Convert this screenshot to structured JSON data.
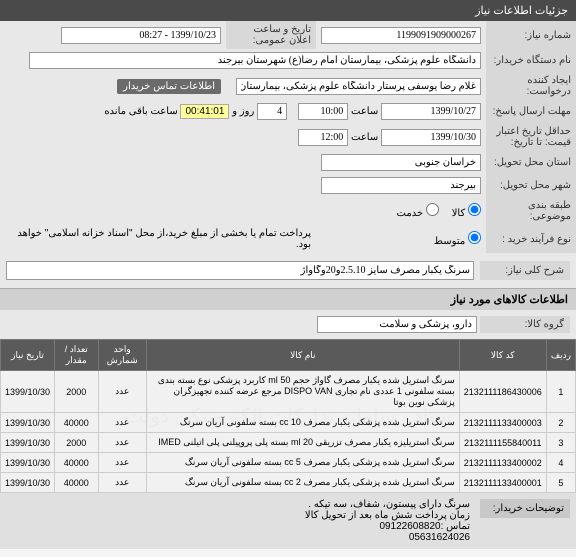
{
  "header": {
    "title": "جزئیات اطلاعات نیاز"
  },
  "form": {
    "need_number_label": "شماره نیاز:",
    "need_number": "1199091909000267",
    "public_date_label": "تاریخ و ساعت اعلان عمومی:",
    "public_date": "1399/10/23 - 08:27",
    "buyer_label": "نام دستگاه خریدار:",
    "buyer": "دانشگاه علوم پزشکی، بیمارستان امام رضا(ع) شهرستان بیرجند",
    "creator_label": "ایجاد کننده درخواست:",
    "creator": "غلام رضا یوسفی پرستار دانشگاه علوم پزشکی، بیمارستان امام رضا(ع) شهرس",
    "contact_btn": "اطلاعات تماس خریدار",
    "deadline_label": "مهلت ارسال پاسخ:",
    "deadline_date": "1399/10/27",
    "time_label": "ساعت",
    "deadline_time": "10:00",
    "days": "4",
    "day_and": "روز و",
    "countdown": "00:41:01",
    "remain": "ساعت باقی مانده",
    "validity_label": "حداقل تاریخ اعتبار قیمت: تا تاریخ:",
    "validity_date": "1399/10/30",
    "validity_time": "12:00",
    "province_label": "استان محل تحویل:",
    "province": "خراسان جنوبی",
    "city_label": "شهر محل تحویل:",
    "city": "بیرجند",
    "supply_label": "طبقه بندی موضوعی:",
    "goods_rb": "کالا",
    "service_rb": "خدمت",
    "contract_label": "نوع فرآیند خرید :",
    "medium_rb": "متوسط",
    "note": "پرداخت تمام یا بخشی از مبلغ خرید،از محل \"اسناد خزانه اسلامی\" خواهد بود."
  },
  "desc": {
    "label": "شرح کلی نیاز:",
    "text": "سرنگ یکبار مصرف سایز 2.5.10و20وگاواژ"
  },
  "items": {
    "title": "اطلاعات کالاهای مورد نیاز",
    "group_label": "گروه کالا:",
    "group": "دارو، پزشکی و سلامت",
    "columns": [
      "ردیف",
      "کد کالا",
      "نام کالا",
      "واحد شمارش",
      "تعداد / مقدار",
      "تاریخ نیاز"
    ],
    "rows": [
      {
        "idx": "1",
        "code": "2132111186430006",
        "name": "سرنگ استریل شده یکبار مصرف گاواژ حجم 50 ml کاربرد پزشکی نوع بسته بندی بسته سلفونی 1 عددی نام تجاری DISPO VAN مرجع عرضه کننده تجهیزگران پزشکی نوین بوتا",
        "unit": "عدد",
        "qty": "2000",
        "date": "1399/10/30"
      },
      {
        "idx": "2",
        "code": "2132111133400003",
        "name": "سرنگ استریل شده پزشکی یکبار مصرف 10 cc بسته سلفونی آریان سرنگ",
        "unit": "عدد",
        "qty": "40000",
        "date": "1399/10/30"
      },
      {
        "idx": "3",
        "code": "2132111155840011",
        "name": "سرنگ استریلیزه یکبار مصرف تزریقی 20 ml بسته پلی پروپیلنی پلی اتیلنی IMED",
        "unit": "عدد",
        "qty": "2000",
        "date": "1399/10/30"
      },
      {
        "idx": "4",
        "code": "2132111133400002",
        "name": "سرنگ استریل شده پزشکی یکبار مصرف 5 cc بسته سلفونی آریان سرنگ",
        "unit": "عدد",
        "qty": "40000",
        "date": "1399/10/30"
      },
      {
        "idx": "5",
        "code": "2132111133400001",
        "name": "سرنگ استریل شده پزشکی یکبار مصرف 2 cc بسته سلفونی آریان سرنگ",
        "unit": "عدد",
        "qty": "40000",
        "date": "1399/10/30"
      }
    ]
  },
  "notes": {
    "label": "توضیحات خریدار:",
    "line1": "سرنگ دارای پیستون، شفاف، سه تیکه .",
    "line2": "زمان پرداخت شش ماه بعد از تحویل کالا",
    "line3": "تماس :09122608820",
    "line4": "05631624026"
  }
}
